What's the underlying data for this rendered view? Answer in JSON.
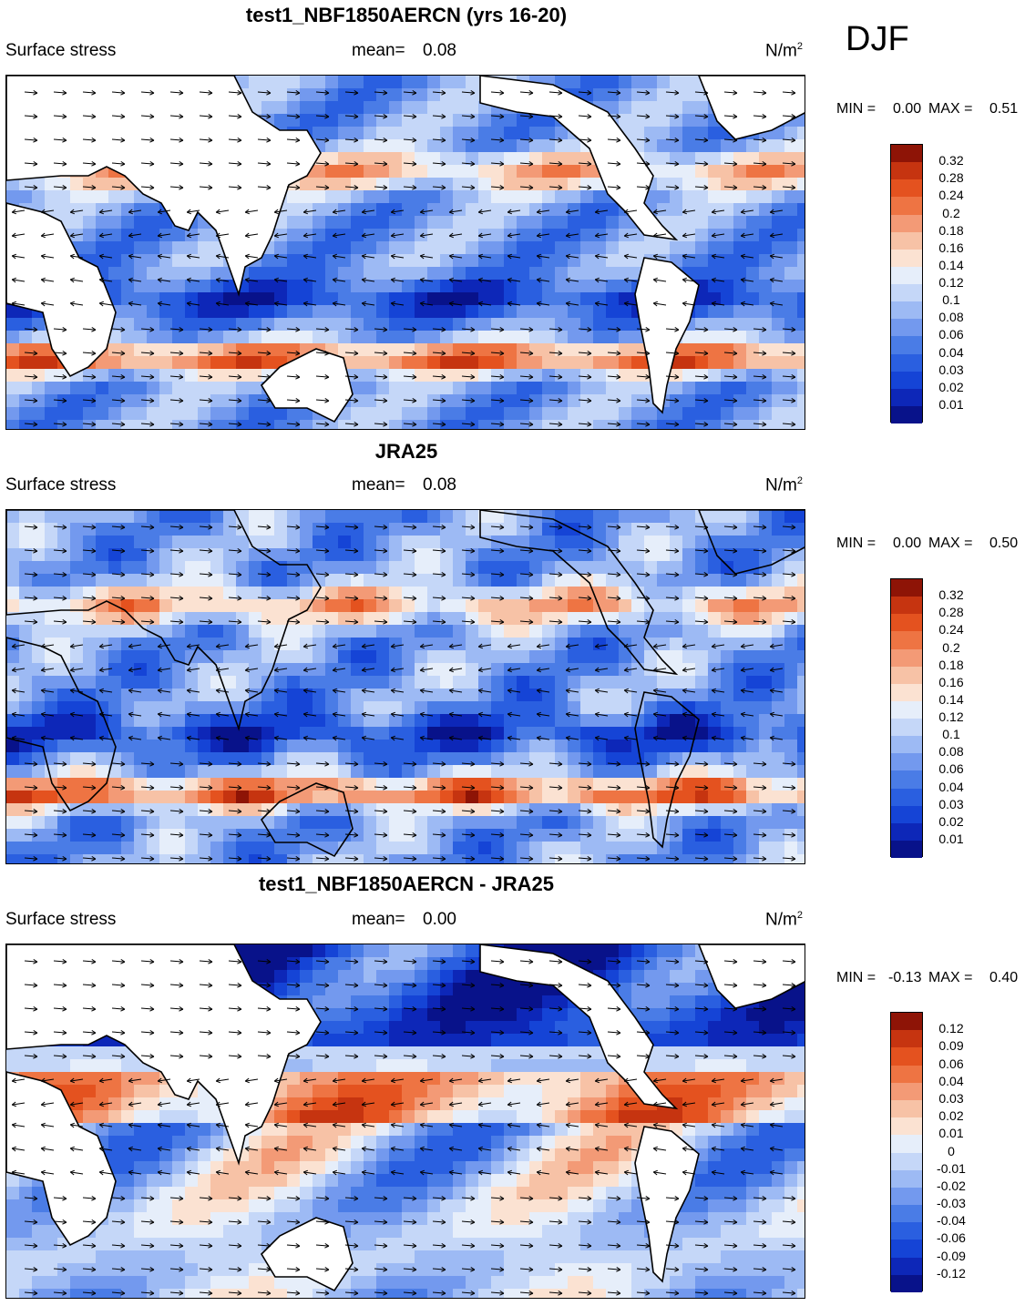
{
  "season": "DJF",
  "colors": {
    "land": "#ffffff",
    "scale": [
      "#08128a",
      "#0d27b8",
      "#1544d6",
      "#2a5fe0",
      "#4a7ce6",
      "#7399ee",
      "#9dbaf4",
      "#c5d7f8",
      "#e6eefa",
      "#fbe2d2",
      "#f7c2a6",
      "#f39a76",
      "#ee7443",
      "#e4521f",
      "#c63410",
      "#8e1406"
    ]
  },
  "panels": [
    {
      "title": "test1_NBF1850AERCN (yrs 16-20)",
      "variable": "Surface stress",
      "mean_label": "mean=",
      "mean_value": "0.08",
      "units": "N/m",
      "units_sup": "2",
      "min_label": "MIN =",
      "min_value": "0.00",
      "max_label": "MAX =",
      "max_value": "0.51",
      "levels": [
        "0.32",
        "0.28",
        "0.24",
        "0.2",
        "0.18",
        "0.16",
        "0.14",
        "0.12",
        "0.1",
        "0.08",
        "0.06",
        "0.04",
        "0.03",
        "0.02",
        "0.01"
      ],
      "map_name": "model-surface-stress-map"
    },
    {
      "title": "JRA25",
      "variable": "Surface stress",
      "mean_label": "mean=",
      "mean_value": "0.08",
      "units": "N/m",
      "units_sup": "2",
      "min_label": "MIN =",
      "min_value": "0.00",
      "max_label": "MAX =",
      "max_value": "0.50",
      "levels": [
        "0.32",
        "0.28",
        "0.24",
        "0.2",
        "0.18",
        "0.16",
        "0.14",
        "0.12",
        "0.1",
        "0.08",
        "0.06",
        "0.04",
        "0.03",
        "0.02",
        "0.01"
      ],
      "map_name": "jra25-surface-stress-map"
    },
    {
      "title": "test1_NBF1850AERCN - JRA25",
      "variable": "Surface stress",
      "mean_label": "mean=",
      "mean_value": "0.00",
      "units": "N/m",
      "units_sup": "2",
      "min_label": "MIN =",
      "min_value": "-0.13",
      "max_label": "MAX =",
      "max_value": "0.40",
      "levels": [
        "0.12",
        "0.09",
        "0.06",
        "0.04",
        "0.03",
        "0.02",
        "0.01",
        "0",
        "-0.01",
        "-0.02",
        "-0.03",
        "-0.04",
        "-0.06",
        "-0.09",
        "-0.12"
      ],
      "map_name": "difference-surface-stress-map"
    }
  ]
}
